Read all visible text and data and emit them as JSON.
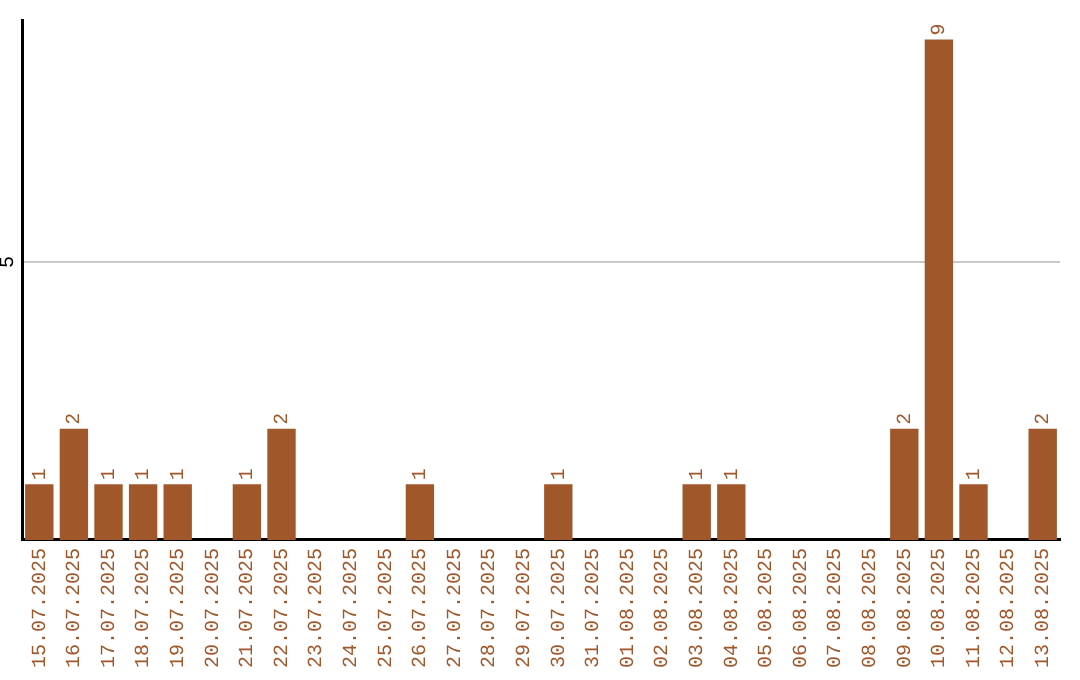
{
  "chart_data": {
    "type": "bar",
    "categories": [
      "15.07.2025",
      "16.07.2025",
      "17.07.2025",
      "18.07.2025",
      "19.07.2025",
      "20.07.2025",
      "21.07.2025",
      "22.07.2025",
      "23.07.2025",
      "24.07.2025",
      "25.07.2025",
      "26.07.2025",
      "27.07.2025",
      "28.07.2025",
      "29.07.2025",
      "30.07.2025",
      "31.07.2025",
      "01.08.2025",
      "02.08.2025",
      "03.08.2025",
      "04.08.2025",
      "05.08.2025",
      "06.08.2025",
      "07.08.2025",
      "08.08.2025",
      "09.08.2025",
      "10.08.2025",
      "11.08.2025",
      "12.08.2025",
      "13.08.2025"
    ],
    "values": [
      1,
      2,
      1,
      1,
      1,
      0,
      1,
      2,
      0,
      0,
      0,
      1,
      0,
      0,
      0,
      1,
      0,
      0,
      0,
      1,
      1,
      0,
      0,
      0,
      0,
      2,
      9,
      1,
      0,
      2
    ],
    "value_labels": [
      "1",
      "2",
      "1",
      "1",
      "1",
      null,
      "1",
      "2",
      null,
      null,
      null,
      "1",
      null,
      null,
      null,
      "1",
      null,
      null,
      null,
      "1",
      "1",
      null,
      null,
      null,
      null,
      "2",
      "9",
      "1",
      null,
      "2"
    ],
    "color": "#a0572a",
    "ylim": [
      0,
      9.35
    ],
    "yticks": [
      5
    ],
    "grid": "y",
    "legend": false
  }
}
